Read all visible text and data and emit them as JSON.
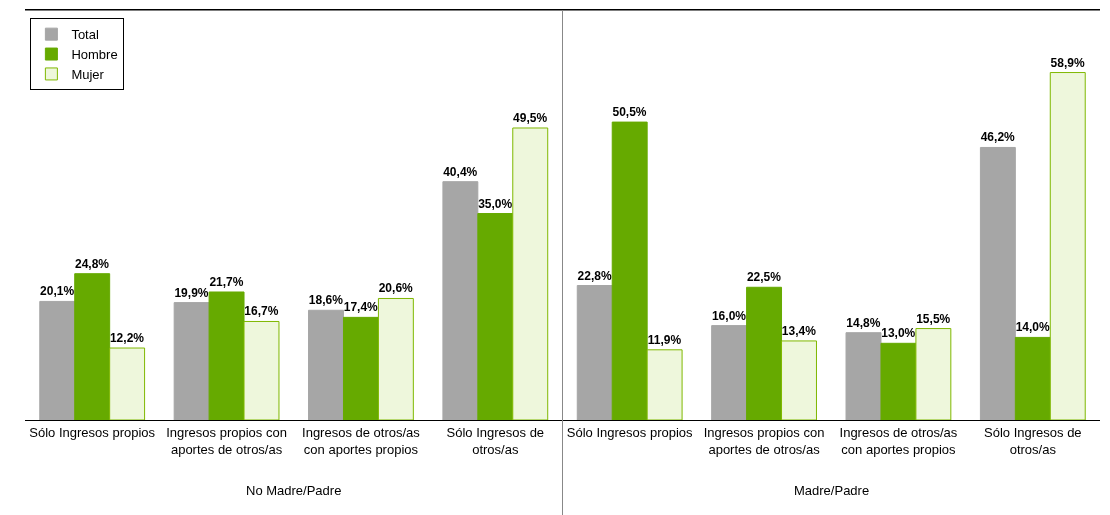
{
  "chart_data": {
    "type": "bar",
    "categories": [
      "Sólo Ingresos propios",
      "Ingresos propios con aportes de otros/as",
      "Ingresos de otros/as con aportes propios",
      "Sólo Ingresos de otros/as",
      "Sólo Ingresos propios",
      "Ingresos propios con aportes de otros/as",
      "Ingresos de otros/as con aportes propios",
      "Sólo Ingresos de otros/as"
    ],
    "series": [
      {
        "name": "Total",
        "color": "#a6a6a6",
        "values": [
          20.1,
          19.9,
          18.6,
          40.4,
          22.8,
          16.0,
          14.8,
          46.2
        ],
        "value_labels": [
          "20,1%",
          "19,9%",
          "18,6%",
          "40,4%",
          "22,8%",
          "16,0%",
          "14,8%",
          "46,2%"
        ]
      },
      {
        "name": "Hombre",
        "color": "#66aa00",
        "values": [
          24.8,
          21.7,
          17.4,
          35.0,
          50.5,
          22.5,
          13.0,
          14.0
        ],
        "value_labels": [
          "24,8%",
          "21,7%",
          "17,4%",
          "35,0%",
          "50,5%",
          "22,5%",
          "13,0%",
          "14,0%"
        ]
      },
      {
        "name": "Mujer",
        "color": "#eef7dc",
        "values": [
          12.2,
          16.7,
          20.6,
          49.5,
          11.9,
          13.4,
          15.5,
          58.9
        ],
        "value_labels": [
          "12,2%",
          "16,7%",
          "20,6%",
          "49,5%",
          "11,9%",
          "13,4%",
          "15,5%",
          "58,9%"
        ]
      }
    ],
    "annotations": [
      "No Madre/Padre",
      "Madre/Padre"
    ],
    "legend": "top left"
  }
}
